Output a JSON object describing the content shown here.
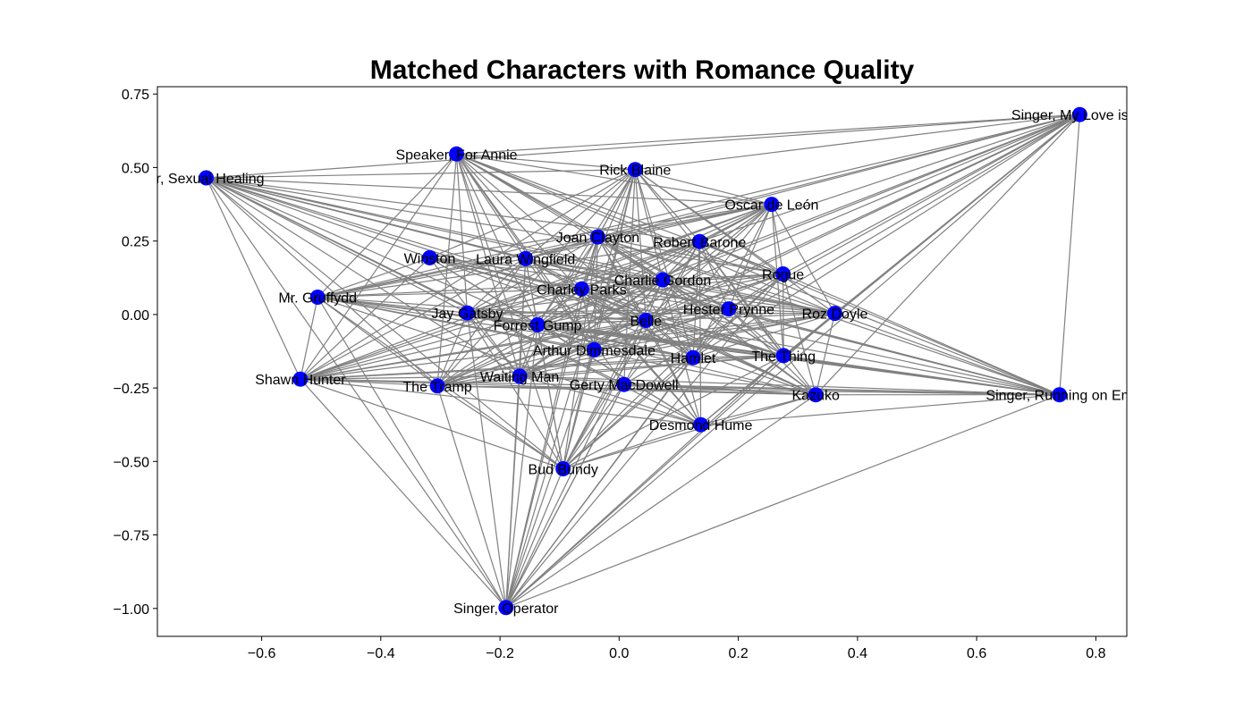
{
  "chart_data": {
    "type": "network",
    "title": "Matched Characters with Romance Quality",
    "xlabel": "",
    "ylabel": "",
    "xlim": [
      -0.775,
      0.852
    ],
    "ylim": [
      -1.095,
      0.775
    ],
    "x_ticks": [
      -0.6,
      -0.4,
      -0.2,
      0.0,
      0.2,
      0.4,
      0.6,
      0.8
    ],
    "x_tick_labels": [
      "−0.6",
      "−0.4",
      "−0.2",
      "0.0",
      "0.2",
      "0.4",
      "0.6",
      "0.8"
    ],
    "y_ticks": [
      0.75,
      0.5,
      0.25,
      0.0,
      -0.25,
      -0.5,
      -0.75,
      -1.0
    ],
    "y_tick_labels": [
      "0.75",
      "0.50",
      "0.25",
      "0.00",
      "−0.25",
      "−0.50",
      "−0.75",
      "−1.00"
    ],
    "grid": false,
    "legend": "none",
    "node_color": "#0000ff",
    "edge_color": "#808080",
    "nodes": [
      {
        "label": "Singer, My Love is Yo",
        "x": 0.773,
        "y": 0.68
      },
      {
        "label": "Speaker, For Annie",
        "x": -0.273,
        "y": 0.546
      },
      {
        "label": "er, Sexual Healing",
        "x": -0.693,
        "y": 0.465
      },
      {
        "label": "Rick Blaine",
        "x": 0.027,
        "y": 0.493
      },
      {
        "label": "Oscar de León",
        "x": 0.256,
        "y": 0.375
      },
      {
        "label": "Joan Clayton",
        "x": -0.036,
        "y": 0.264
      },
      {
        "label": "Robert Barone",
        "x": 0.135,
        "y": 0.248
      },
      {
        "label": "Winston",
        "x": -0.318,
        "y": 0.193
      },
      {
        "label": "Laura Wingfield",
        "x": -0.157,
        "y": 0.19
      },
      {
        "label": "Rogue",
        "x": 0.275,
        "y": 0.138
      },
      {
        "label": "Charlie Gordon",
        "x": 0.073,
        "y": 0.118
      },
      {
        "label": "Charley Parks",
        "x": -0.063,
        "y": 0.087
      },
      {
        "label": "Mr. Gruffydd",
        "x": -0.506,
        "y": 0.059
      },
      {
        "label": "Hester Prynne",
        "x": 0.184,
        "y": 0.019
      },
      {
        "label": "Jay Gatsby",
        "x": -0.255,
        "y": 0.005
      },
      {
        "label": "Roz Doyle",
        "x": 0.362,
        "y": 0.004
      },
      {
        "label": "Belle",
        "x": 0.045,
        "y": -0.02
      },
      {
        "label": "Forrest Gump",
        "x": -0.137,
        "y": -0.035
      },
      {
        "label": "Arthur Dimmesdale",
        "x": -0.042,
        "y": -0.12
      },
      {
        "label": "Hamlet",
        "x": 0.124,
        "y": -0.147
      },
      {
        "label": "The Thing",
        "x": 0.276,
        "y": -0.14
      },
      {
        "label": "Shawn Hunter",
        "x": -0.535,
        "y": -0.22
      },
      {
        "label": "Waiting Man",
        "x": -0.167,
        "y": -0.21
      },
      {
        "label": "The Tramp",
        "x": -0.305,
        "y": -0.243
      },
      {
        "label": "Gerty MacDowell",
        "x": 0.008,
        "y": -0.238
      },
      {
        "label": "Kazuko",
        "x": 0.33,
        "y": -0.273
      },
      {
        "label": "Singer, Running on Em",
        "x": 0.739,
        "y": -0.273
      },
      {
        "label": "Desmond Hume",
        "x": 0.137,
        "y": -0.375
      },
      {
        "label": "Bud Bundy",
        "x": -0.094,
        "y": -0.525
      },
      {
        "label": "Singer, Operator",
        "x": -0.19,
        "y": -0.997
      }
    ]
  }
}
